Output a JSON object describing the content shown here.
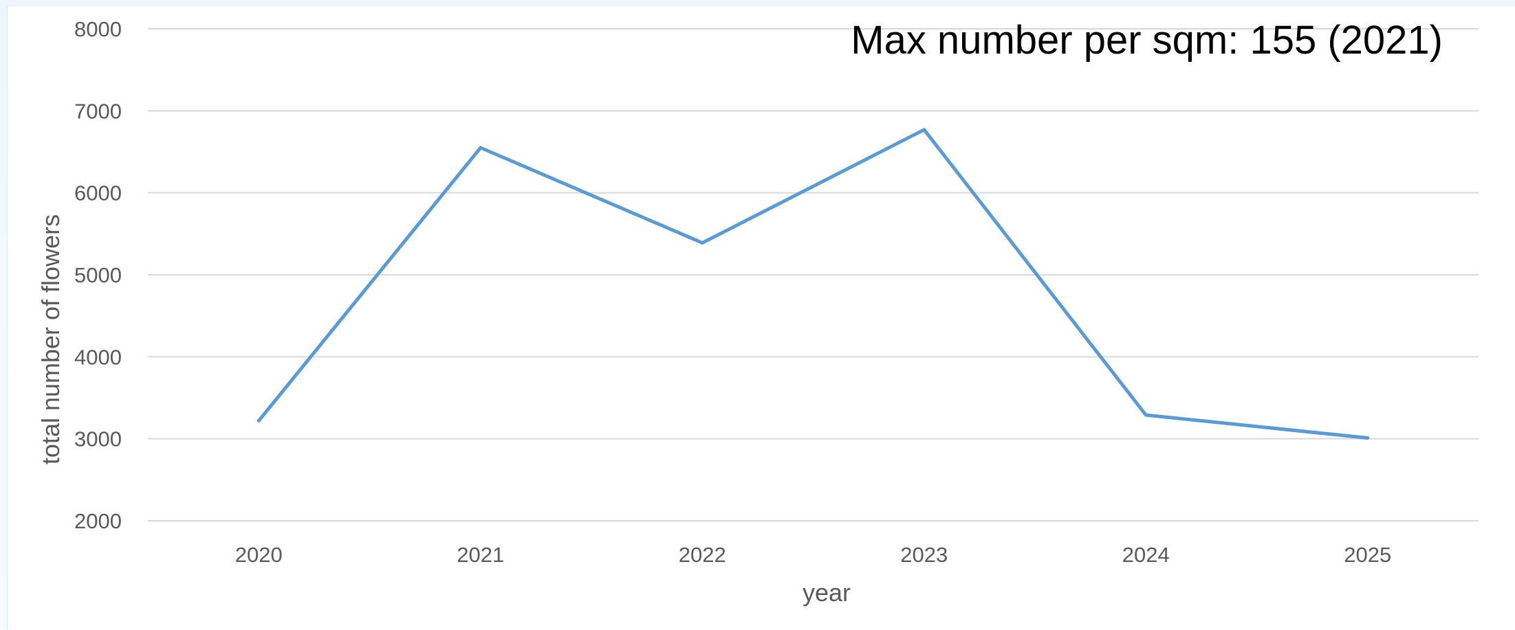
{
  "chart_data": {
    "type": "line",
    "x": [
      "2020",
      "2021",
      "2022",
      "2023",
      "2024",
      "2025"
    ],
    "series": [
      {
        "values": [
          3220,
          6550,
          5390,
          6770,
          3290,
          3010
        ]
      }
    ],
    "title": "",
    "xlabel": "year",
    "ylabel": "total number of flowers",
    "ylim": [
      2000,
      8000
    ],
    "yticks": [
      2000,
      3000,
      4000,
      5000,
      6000,
      7000,
      8000
    ],
    "grid": true,
    "legend": "none",
    "annotation": "Max number per sqm: 155 (2021)",
    "colors": {
      "line": "#5b9bd5",
      "grid": "#d9d9d9",
      "text": "#595959"
    }
  }
}
